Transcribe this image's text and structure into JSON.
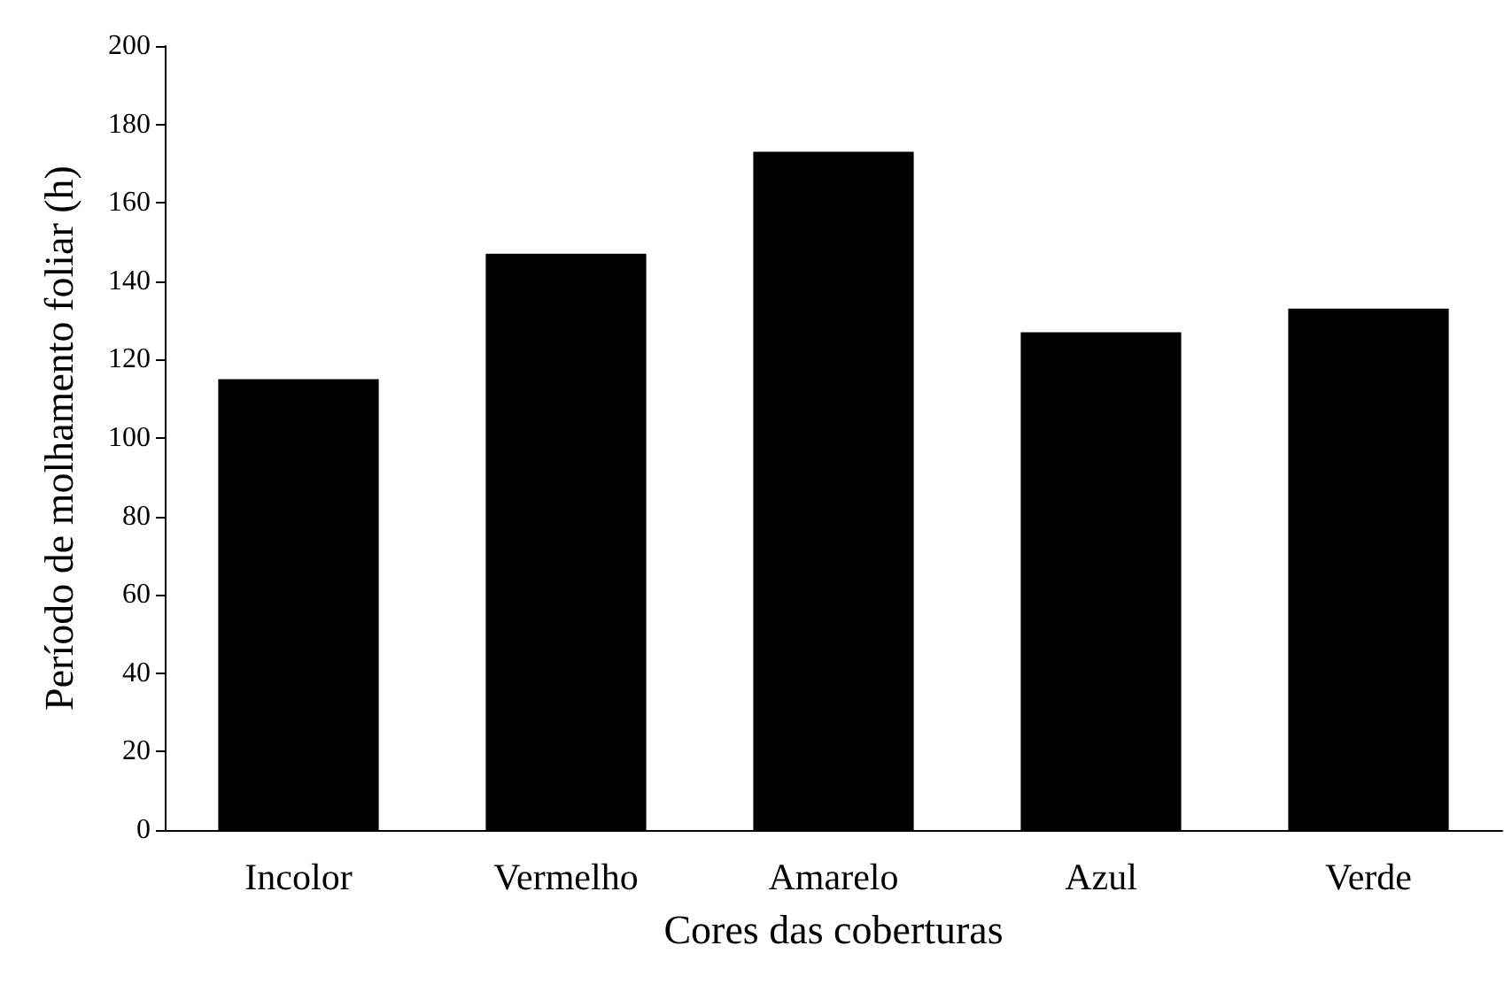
{
  "chart_data": {
    "type": "bar",
    "xlabel": "Cores das coberturas",
    "ylabel": "Período de molhamento foliar (h)",
    "categories": [
      "Incolor",
      "Vermelho",
      "Amarelo",
      "Azul",
      "Verde"
    ],
    "values": [
      115,
      147,
      173,
      127,
      133
    ],
    "color": "#000000",
    "ylim": [
      0,
      200
    ],
    "yticks": [
      0,
      20,
      40,
      60,
      80,
      100,
      120,
      140,
      160,
      180,
      200
    ],
    "grid": false
  }
}
